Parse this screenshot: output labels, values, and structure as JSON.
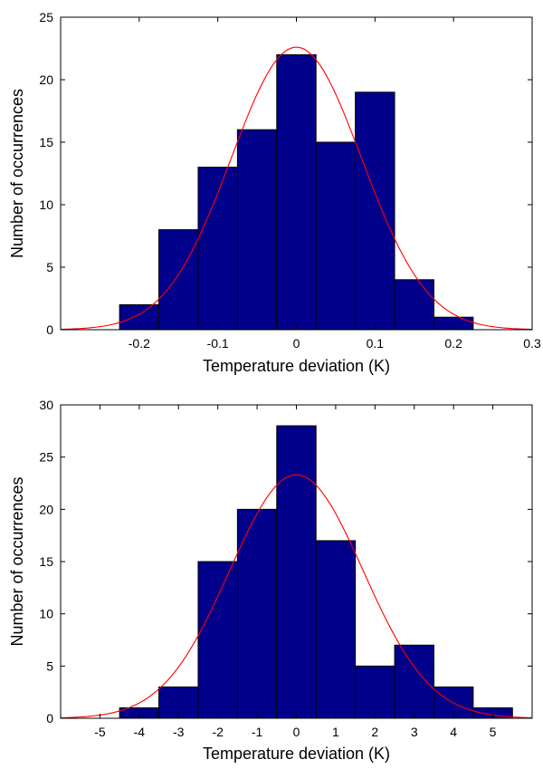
{
  "chart_data": [
    {
      "type": "bar",
      "subtype": "histogram",
      "xlabel": "Temperature deviation (K)",
      "ylabel": "Number of occurrences",
      "xlim": [
        -0.3,
        0.3
      ],
      "ylim": [
        0,
        25
      ],
      "xticks": [
        -0.2,
        -0.1,
        0,
        0.1,
        0.2,
        0.3
      ],
      "xtick_labels": [
        "-0.2",
        "-0.1",
        "0",
        "0.1",
        "0.2",
        "0.3"
      ],
      "yticks": [
        0,
        5,
        10,
        15,
        20,
        25
      ],
      "ytick_labels": [
        "0",
        "5",
        "10",
        "15",
        "20",
        "25"
      ],
      "bin_edges": [
        -0.225,
        -0.175,
        -0.125,
        -0.075,
        -0.025,
        0.025,
        0.075,
        0.125,
        0.175,
        0.225
      ],
      "values": [
        2,
        8,
        13,
        16,
        22,
        15,
        19,
        4,
        1
      ],
      "bar_color": "#00008b",
      "fit": {
        "type": "normal",
        "mean": 0,
        "sigma": 0.083,
        "peak": 22.6,
        "color": "#ff0000"
      },
      "grid": false
    },
    {
      "type": "bar",
      "subtype": "histogram",
      "xlabel": "Temperature deviation (K)",
      "ylabel": "Number of occurrences",
      "xlim": [
        -6,
        6
      ],
      "ylim": [
        0,
        30
      ],
      "xticks": [
        -5,
        -4,
        -3,
        -2,
        -1,
        0,
        1,
        2,
        3,
        4,
        5
      ],
      "xtick_labels": [
        "-5",
        "-4",
        "-3",
        "-2",
        "-1",
        "0",
        "1",
        "2",
        "3",
        "4",
        "5"
      ],
      "yticks": [
        0,
        5,
        10,
        15,
        20,
        25,
        30
      ],
      "ytick_labels": [
        "0",
        "5",
        "10",
        "15",
        "20",
        "25",
        "30"
      ],
      "bin_edges": [
        -4.5,
        -3.5,
        -2.5,
        -1.5,
        -0.5,
        0.5,
        1.5,
        2.5,
        3.5,
        4.5,
        5.5
      ],
      "values": [
        1,
        3,
        15,
        20,
        28,
        17,
        5,
        7,
        3,
        1
      ],
      "bar_color": "#00008b",
      "fit": {
        "type": "normal",
        "mean": 0,
        "sigma": 1.7,
        "peak": 23.3,
        "color": "#ff0000"
      },
      "grid": false
    }
  ]
}
